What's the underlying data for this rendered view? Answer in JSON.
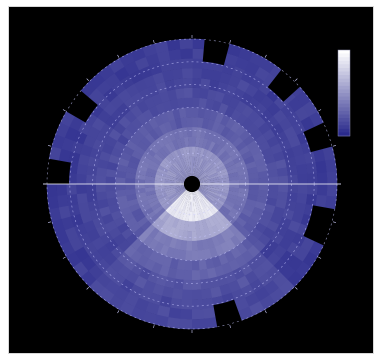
{
  "chart_data": {
    "type": "heatmap",
    "projection": "polar",
    "azimuth_ticks_deg": [
      0,
      15,
      30,
      45,
      60,
      75,
      90,
      105,
      120,
      135,
      150,
      165,
      180,
      195,
      210,
      225,
      240,
      255,
      270,
      285,
      300,
      315,
      330,
      345
    ],
    "range_ring_labels": [
      "",
      "",
      "",
      "",
      ""
    ],
    "colorbar_labels": [
      "",
      "",
      "",
      "",
      "",
      "",
      "",
      "",
      ""
    ],
    "radial_profile": [
      {
        "band": 1,
        "intensity": 0.85
      },
      {
        "band": 2,
        "intensity": 0.55
      },
      {
        "band": 3,
        "intensity": 0.35
      },
      {
        "band": 4,
        "intensity": 0.22
      },
      {
        "band": 5,
        "intensity": 0.15
      },
      {
        "band": 6,
        "intensity": 0.1
      }
    ],
    "enhanced_sector_deg": [
      135,
      225
    ],
    "blocked_sectors_deg": [
      [
        5,
        15
      ],
      [
        38,
        48
      ],
      [
        65,
        75
      ],
      [
        100,
        115
      ],
      [
        160,
        170
      ],
      [
        270,
        280
      ],
      [
        300,
        310
      ]
    ],
    "colors": {
      "background": "#000000",
      "low": "#2a2a8c",
      "high": "#ffffff",
      "grid": "#c8c8ff",
      "axis": "#ffffff"
    },
    "grid": true
  }
}
